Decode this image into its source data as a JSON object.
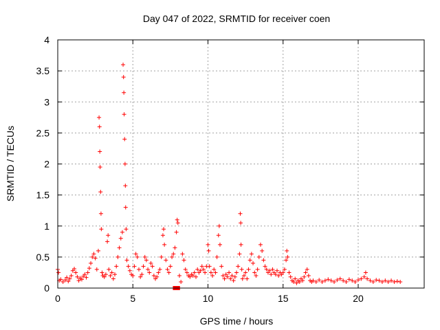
{
  "chart_data": {
    "type": "scatter",
    "title": "Day 047 of 2022, SRMTID for receiver coen",
    "xlabel": "GPS time / hours",
    "ylabel": "SRMTID / TECUs",
    "xlim": [
      0,
      24
    ],
    "ylim": [
      0,
      4
    ],
    "xticks": [
      "0",
      "5",
      "10",
      "15",
      "20"
    ],
    "yticks": [
      "0",
      "0.5",
      "1",
      "1.5",
      "2",
      "2.5",
      "3",
      "3.5",
      "4"
    ],
    "grid": true,
    "marker": "plus",
    "color": "#ff0000",
    "series": [
      {
        "name": "SRMTID",
        "points": [
          [
            0.0,
            0.3
          ],
          [
            0.05,
            0.25
          ],
          [
            0.1,
            0.12
          ],
          [
            0.2,
            0.14
          ],
          [
            0.35,
            0.1
          ],
          [
            0.5,
            0.13
          ],
          [
            0.6,
            0.17
          ],
          [
            0.7,
            0.11
          ],
          [
            0.8,
            0.15
          ],
          [
            0.9,
            0.2
          ],
          [
            1.0,
            0.28
          ],
          [
            1.1,
            0.31
          ],
          [
            1.2,
            0.25
          ],
          [
            1.3,
            0.18
          ],
          [
            1.4,
            0.12
          ],
          [
            1.5,
            0.16
          ],
          [
            1.6,
            0.14
          ],
          [
            1.7,
            0.19
          ],
          [
            1.8,
            0.22
          ],
          [
            1.9,
            0.17
          ],
          [
            2.0,
            0.25
          ],
          [
            2.1,
            0.32
          ],
          [
            2.2,
            0.4
          ],
          [
            2.3,
            0.5
          ],
          [
            2.4,
            0.55
          ],
          [
            2.5,
            0.48
          ],
          [
            2.6,
            0.3
          ],
          [
            2.7,
            0.6
          ],
          [
            2.75,
            2.75
          ],
          [
            2.78,
            2.6
          ],
          [
            2.8,
            2.2
          ],
          [
            2.82,
            1.95
          ],
          [
            2.85,
            1.55
          ],
          [
            2.88,
            1.2
          ],
          [
            2.9,
            0.95
          ],
          [
            2.95,
            0.25
          ],
          [
            3.0,
            0.2
          ],
          [
            3.1,
            0.18
          ],
          [
            3.2,
            0.22
          ],
          [
            3.3,
            0.75
          ],
          [
            3.35,
            0.85
          ],
          [
            3.4,
            0.3
          ],
          [
            3.5,
            0.2
          ],
          [
            3.6,
            0.25
          ],
          [
            3.7,
            0.15
          ],
          [
            3.8,
            0.22
          ],
          [
            3.9,
            0.35
          ],
          [
            4.0,
            0.5
          ],
          [
            4.1,
            0.65
          ],
          [
            4.2,
            0.8
          ],
          [
            4.3,
            0.9
          ],
          [
            4.35,
            3.6
          ],
          [
            4.38,
            3.4
          ],
          [
            4.4,
            3.15
          ],
          [
            4.42,
            2.8
          ],
          [
            4.45,
            2.4
          ],
          [
            4.48,
            2.0
          ],
          [
            4.5,
            1.65
          ],
          [
            4.52,
            1.3
          ],
          [
            4.55,
            0.95
          ],
          [
            4.6,
            0.45
          ],
          [
            4.7,
            0.35
          ],
          [
            4.8,
            0.28
          ],
          [
            4.9,
            0.22
          ],
          [
            5.0,
            0.2
          ],
          [
            5.1,
            0.35
          ],
          [
            5.2,
            0.55
          ],
          [
            5.3,
            0.5
          ],
          [
            5.4,
            0.3
          ],
          [
            5.5,
            0.18
          ],
          [
            5.6,
            0.22
          ],
          [
            5.7,
            0.35
          ],
          [
            5.8,
            0.5
          ],
          [
            5.9,
            0.45
          ],
          [
            6.0,
            0.3
          ],
          [
            6.1,
            0.25
          ],
          [
            6.2,
            0.4
          ],
          [
            6.3,
            0.35
          ],
          [
            6.4,
            0.2
          ],
          [
            6.5,
            0.15
          ],
          [
            6.6,
            0.18
          ],
          [
            6.7,
            0.25
          ],
          [
            6.8,
            0.3
          ],
          [
            6.9,
            0.5
          ],
          [
            7.0,
            0.85
          ],
          [
            7.05,
            0.95
          ],
          [
            7.1,
            0.7
          ],
          [
            7.2,
            0.45
          ],
          [
            7.3,
            0.3
          ],
          [
            7.4,
            0.25
          ],
          [
            7.5,
            0.35
          ],
          [
            7.6,
            0.5
          ],
          [
            7.7,
            0.55
          ],
          [
            7.8,
            0.65
          ],
          [
            7.9,
            0.9
          ],
          [
            7.95,
            1.1
          ],
          [
            8.0,
            1.05
          ],
          [
            8.1,
            0.2
          ],
          [
            8.2,
            0.1
          ],
          [
            8.3,
            0.55
          ],
          [
            8.4,
            0.45
          ],
          [
            8.5,
            0.3
          ],
          [
            8.6,
            0.25
          ],
          [
            8.7,
            0.2
          ],
          [
            8.8,
            0.18
          ],
          [
            8.9,
            0.22
          ],
          [
            9.0,
            0.2
          ],
          [
            9.1,
            0.25
          ],
          [
            9.2,
            0.18
          ],
          [
            9.3,
            0.3
          ],
          [
            9.4,
            0.25
          ],
          [
            9.5,
            0.28
          ],
          [
            9.6,
            0.35
          ],
          [
            9.7,
            0.3
          ],
          [
            9.8,
            0.25
          ],
          [
            9.9,
            0.35
          ],
          [
            10.0,
            0.7
          ],
          [
            10.05,
            0.6
          ],
          [
            10.1,
            0.35
          ],
          [
            10.2,
            0.25
          ],
          [
            10.3,
            0.2
          ],
          [
            10.4,
            0.3
          ],
          [
            10.5,
            0.25
          ],
          [
            10.6,
            0.5
          ],
          [
            10.7,
            0.85
          ],
          [
            10.75,
            1.0
          ],
          [
            10.8,
            0.7
          ],
          [
            10.9,
            0.35
          ],
          [
            11.0,
            0.2
          ],
          [
            11.1,
            0.15
          ],
          [
            11.2,
            0.22
          ],
          [
            11.3,
            0.18
          ],
          [
            11.4,
            0.25
          ],
          [
            11.5,
            0.15
          ],
          [
            11.6,
            0.2
          ],
          [
            11.7,
            0.12
          ],
          [
            11.8,
            0.18
          ],
          [
            11.9,
            0.25
          ],
          [
            12.0,
            0.35
          ],
          [
            12.1,
            0.55
          ],
          [
            12.15,
            1.2
          ],
          [
            12.18,
            1.05
          ],
          [
            12.2,
            0.7
          ],
          [
            12.25,
            0.3
          ],
          [
            12.3,
            0.15
          ],
          [
            12.4,
            0.2
          ],
          [
            12.5,
            0.25
          ],
          [
            12.6,
            0.15
          ],
          [
            12.7,
            0.3
          ],
          [
            12.8,
            0.45
          ],
          [
            12.9,
            0.55
          ],
          [
            13.0,
            0.4
          ],
          [
            13.1,
            0.25
          ],
          [
            13.2,
            0.2
          ],
          [
            13.3,
            0.3
          ],
          [
            13.4,
            0.5
          ],
          [
            13.5,
            0.7
          ],
          [
            13.6,
            0.6
          ],
          [
            13.7,
            0.45
          ],
          [
            13.8,
            0.35
          ],
          [
            13.9,
            0.3
          ],
          [
            14.0,
            0.25
          ],
          [
            14.1,
            0.28
          ],
          [
            14.2,
            0.22
          ],
          [
            14.3,
            0.3
          ],
          [
            14.4,
            0.25
          ],
          [
            14.5,
            0.22
          ],
          [
            14.6,
            0.28
          ],
          [
            14.7,
            0.2
          ],
          [
            14.8,
            0.25
          ],
          [
            14.9,
            0.22
          ],
          [
            15.0,
            0.25
          ],
          [
            15.1,
            0.3
          ],
          [
            15.2,
            0.45
          ],
          [
            15.25,
            0.6
          ],
          [
            15.3,
            0.5
          ],
          [
            15.4,
            0.25
          ],
          [
            15.5,
            0.18
          ],
          [
            15.6,
            0.12
          ],
          [
            15.7,
            0.1
          ],
          [
            15.8,
            0.15
          ],
          [
            15.9,
            0.08
          ],
          [
            16.0,
            0.12
          ],
          [
            16.1,
            0.1
          ],
          [
            16.2,
            0.15
          ],
          [
            16.3,
            0.12
          ],
          [
            16.4,
            0.18
          ],
          [
            16.5,
            0.25
          ],
          [
            16.6,
            0.3
          ],
          [
            16.7,
            0.2
          ],
          [
            16.8,
            0.12
          ],
          [
            16.9,
            0.1
          ],
          [
            17.0,
            0.12
          ],
          [
            17.2,
            0.1
          ],
          [
            17.4,
            0.13
          ],
          [
            17.6,
            0.1
          ],
          [
            17.8,
            0.12
          ],
          [
            18.0,
            0.14
          ],
          [
            18.2,
            0.12
          ],
          [
            18.4,
            0.1
          ],
          [
            18.6,
            0.13
          ],
          [
            18.8,
            0.15
          ],
          [
            19.0,
            0.12
          ],
          [
            19.2,
            0.1
          ],
          [
            19.4,
            0.14
          ],
          [
            19.6,
            0.12
          ],
          [
            19.8,
            0.1
          ],
          [
            20.0,
            0.13
          ],
          [
            20.2,
            0.15
          ],
          [
            20.4,
            0.18
          ],
          [
            20.5,
            0.25
          ],
          [
            20.6,
            0.15
          ],
          [
            20.8,
            0.12
          ],
          [
            21.0,
            0.1
          ],
          [
            21.2,
            0.13
          ],
          [
            21.4,
            0.12
          ],
          [
            21.6,
            0.1
          ],
          [
            21.8,
            0.12
          ],
          [
            22.0,
            0.1
          ],
          [
            22.2,
            0.12
          ],
          [
            22.4,
            0.1
          ],
          [
            22.6,
            0.11
          ],
          [
            22.8,
            0.1
          ]
        ],
        "square_markers": [
          [
            7.8,
            0.0
          ],
          [
            8.0,
            0.0
          ]
        ]
      }
    ]
  }
}
